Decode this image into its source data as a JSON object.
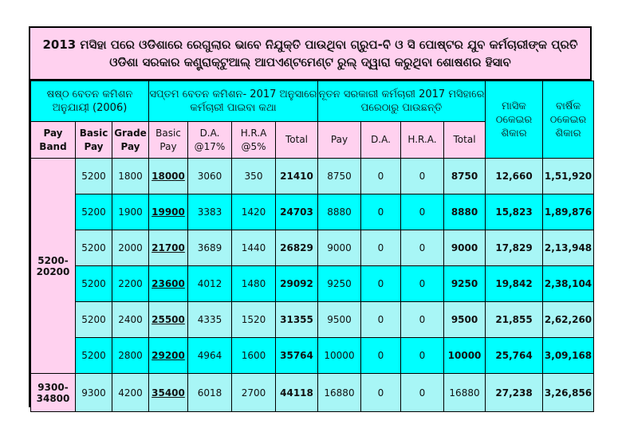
{
  "title": {
    "line1": "2013 ମସିହା ପରେ ଓଡିଶାରେ ରେଗୁଲାର ଭାବେ ନିଯୁକ୍ତି ପାଉଥିବା ଗ୍ରୁପ-ବି ଓ ସି ପୋଷ୍ଟର ଯୁବ କର୍ମଚାରୀଙ୍କ ପ୍ରତି",
    "line2": "ଓଡିଶା ସରକାର କଣ୍ଟ୍ରାକ୍ଟୁଆଲ୍ ଆପଏଣ୍ଟମେଣ୍ଟ ରୁଲ୍ ଦ୍ୱାରା କରୁଥିବା ଶୋଷଣର ହିସାବ"
  },
  "groups": {
    "sixth": "ଷଷ୍ଠ ବେତନ କମିଶନ ଅନୁଯାୟୀ (2006)",
    "seventh": "ସପ୍ତମ ବେତନ କମିଶନ- 2017 ଅନୁସାରେ କର୍ମଚାରୀ ପାଇବା କଥା",
    "new": "ନୂତନ ସରକାରୀ କର୍ମଚାରୀ 2017 ମସିହାରେ ପରେଠାରୁ ପାଉଛନ୍ତି",
    "monthly": "ମାସିକ ଠକେଇର ଶିକାର",
    "yearly": "ବାର୍ଷିକ ଠକେଇର ଶିକାର"
  },
  "headers": {
    "pay_band": "Pay Band",
    "basic_pay": "Basic Pay",
    "grade_pay": "Grade Pay",
    "basic_pay_7": "Basic Pay",
    "da": "D.A. @17%",
    "hra": "H.R.A @5%",
    "total": "Total",
    "pay": "Pay",
    "da_new": "D.A.",
    "hra_new": "H.R.A.",
    "total_new": "Total"
  },
  "rows": [
    {
      "band": "5200-20200",
      "basic": "5200",
      "grade": "1800",
      "basic7": "18000",
      "da": "3060",
      "hra": "350",
      "total": "21410",
      "pay": "8750",
      "da_new": "0",
      "hra_new": "0",
      "total_new": "8750",
      "monthly": "12,660",
      "yearly": "1,51,920"
    },
    {
      "band": "",
      "basic": "5200",
      "grade": "1900",
      "basic7": "19900",
      "da": "3383",
      "hra": "1420",
      "total": "24703",
      "pay": "8880",
      "da_new": "0",
      "hra_new": "0",
      "total_new": "8880",
      "monthly": "15,823",
      "yearly": "1,89,876"
    },
    {
      "band": "",
      "basic": "5200",
      "grade": "2000",
      "basic7": "21700",
      "da": "3689",
      "hra": "1440",
      "total": "26829",
      "pay": "9000",
      "da_new": "0",
      "hra_new": "0",
      "total_new": "9000",
      "monthly": "17,829",
      "yearly": "2,13,948"
    },
    {
      "band": "",
      "basic": "5200",
      "grade": "2200",
      "basic7": "23600",
      "da": "4012",
      "hra": "1480",
      "total": "29092",
      "pay": "9250",
      "da_new": "0",
      "hra_new": "0",
      "total_new": "9250",
      "monthly": "19,842",
      "yearly": "2,38,104"
    },
    {
      "band": "",
      "basic": "5200",
      "grade": "2400",
      "basic7": "25500",
      "da": "4335",
      "hra": "1520",
      "total": "31355",
      "pay": "9500",
      "da_new": "0",
      "hra_new": "0",
      "total_new": "9500",
      "monthly": "21,855",
      "yearly": "2,62,260"
    },
    {
      "band": "",
      "basic": "5200",
      "grade": "2800",
      "basic7": "29200",
      "da": "4964",
      "hra": "1600",
      "total": "35764",
      "pay": "10000",
      "da_new": "0",
      "hra_new": "0",
      "total_new": "10000",
      "monthly": "25,764",
      "yearly": "3,09,168"
    },
    {
      "band": "9300-34800",
      "basic": "9300",
      "grade": "4200",
      "basic7": "35400",
      "da": "6018",
      "hra": "2700",
      "total": "44118",
      "pay": "16880",
      "da_new": "0",
      "hra_new": "0",
      "total_new": "16880",
      "monthly": "27,238",
      "yearly": "3,26,856"
    }
  ],
  "colors": {
    "pink": "#ffd1ef",
    "cyan": "#00ffff",
    "light_cyan": "#a8f6f6"
  }
}
